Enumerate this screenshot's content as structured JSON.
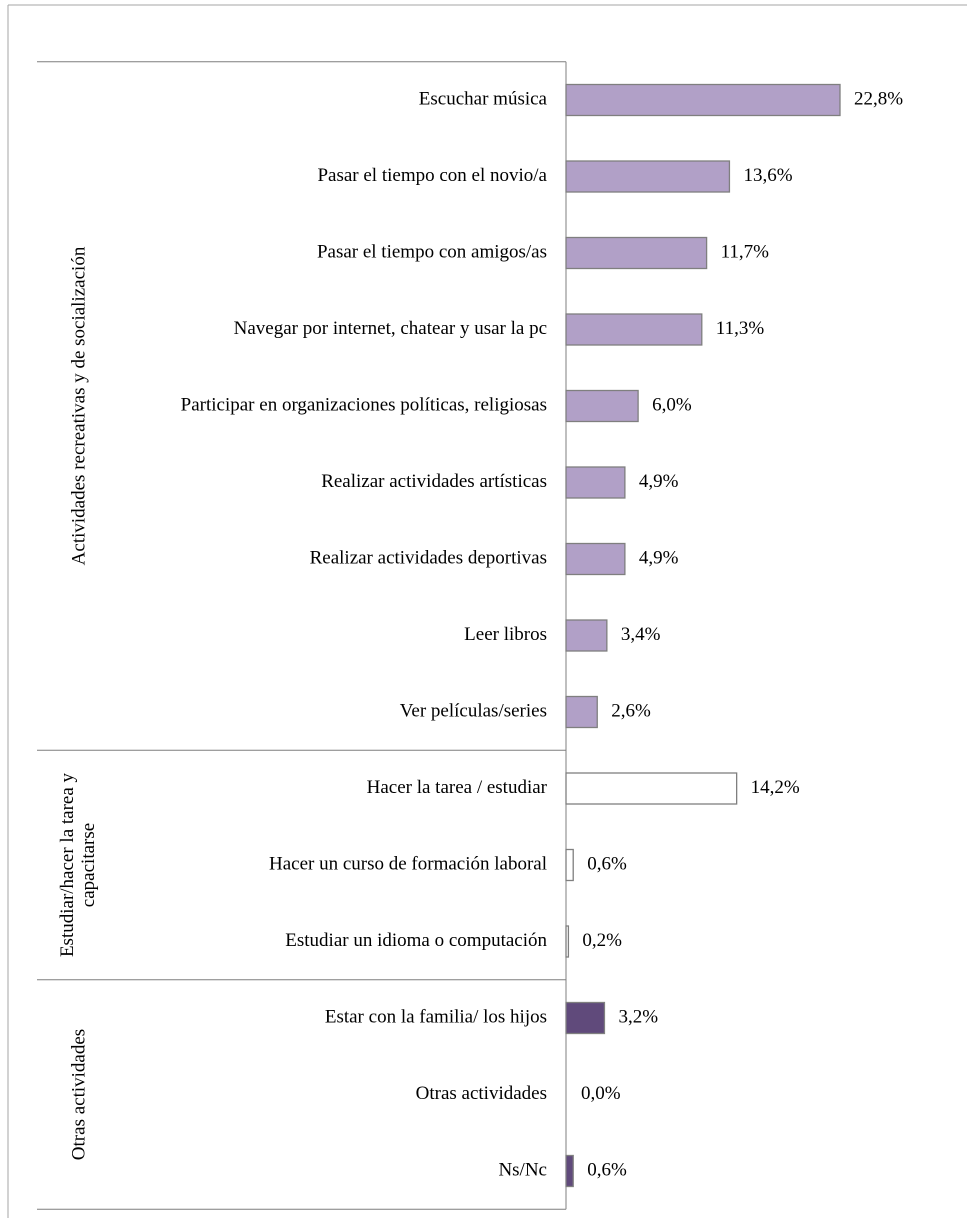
{
  "chart_data": {
    "type": "bar",
    "orientation": "horizontal",
    "title": "",
    "xlabel": "",
    "ylabel": "",
    "xlim": [
      0,
      22.8
    ],
    "grid": false,
    "legend": "none",
    "groups": [
      {
        "name": "Actividades recreativas y de socialización",
        "lines": [
          "Actividades recreativas y de socialización"
        ],
        "fill": "#b1a0c7",
        "stroke": "#7f7f7f",
        "items": [
          {
            "label": "Escuchar música",
            "value": 22.8,
            "value_label": "22,8%"
          },
          {
            "label": "Pasar el tiempo con el novio/a",
            "value": 13.6,
            "value_label": "13,6%"
          },
          {
            "label": "Pasar el tiempo con amigos/as",
            "value": 11.7,
            "value_label": "11,7%"
          },
          {
            "label": "Navegar por internet,  chatear y usar la pc",
            "value": 11.3,
            "value_label": "11,3%"
          },
          {
            "label": "Participar en organizaciones políticas, religiosas",
            "value": 6.0,
            "value_label": "6,0%"
          },
          {
            "label": "Realizar actividades artísticas",
            "value": 4.9,
            "value_label": "4,9%"
          },
          {
            "label": "Realizar actividades deportivas",
            "value": 4.9,
            "value_label": "4,9%"
          },
          {
            "label": "Leer libros",
            "value": 3.4,
            "value_label": "3,4%"
          },
          {
            "label": "Ver películas/series",
            "value": 2.6,
            "value_label": "2,6%"
          }
        ]
      },
      {
        "name": "Estudiar/hacer la tarea y capacitarse",
        "lines": [
          "Estudiar/hacer la tarea y",
          "capacitarse"
        ],
        "fill": "#ffffff",
        "stroke": "#7f7f7f",
        "items": [
          {
            "label": "Hacer la tarea / estudiar",
            "value": 14.2,
            "value_label": "14,2%"
          },
          {
            "label": "Hacer un curso de formación laboral",
            "value": 0.6,
            "value_label": "0,6%"
          },
          {
            "label": "Estudiar un idioma o computación",
            "value": 0.2,
            "value_label": "0,2%"
          }
        ]
      },
      {
        "name": "Otras actividades",
        "lines": [
          "Otras actividades"
        ],
        "fill": "#604a7b",
        "stroke": "#7f7f7f",
        "items": [
          {
            "label": "Estar con la familia/ los hijos",
            "value": 3.2,
            "value_label": "3,2%"
          },
          {
            "label": "Otras actividades",
            "value": 0.0,
            "value_label": "0,0%"
          },
          {
            "label": "Ns/Nc",
            "value": 0.6,
            "value_label": "0,6%"
          }
        ]
      }
    ]
  }
}
